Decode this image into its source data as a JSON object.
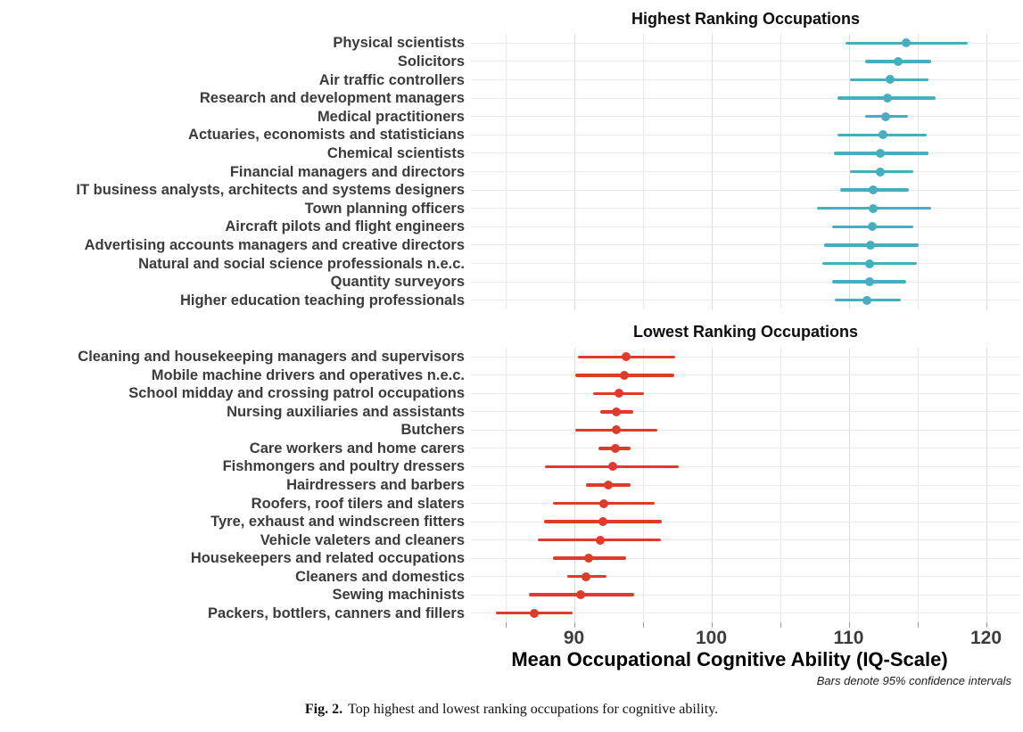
{
  "figure": {
    "caption_label": "Fig. 2.",
    "caption_text": "Top highest and lowest ranking occupations for cognitive ability."
  },
  "chart_data": {
    "type": "scatter",
    "variant": "horizontal-dot-plot-with-95ci-error-bars",
    "xlabel": "Mean Occupational Cognitive Ability (IQ-Scale)",
    "note": "Bars denote 95% confidence intervals",
    "xlim": [
      82.5,
      122.5
    ],
    "x_ticks_labeled": [
      90,
      100,
      110,
      120
    ],
    "x_ticks_minor": [
      85,
      95,
      105,
      115
    ],
    "grid": true,
    "legend_position": "none",
    "panels": [
      {
        "title": "Highest Ranking Occupations",
        "color": "#46AEBE",
        "rows": [
          {
            "label": "Physical scientists",
            "mean": 114.2,
            "lo": 109.8,
            "hi": 118.7
          },
          {
            "label": "Solicitors",
            "mean": 113.6,
            "lo": 111.2,
            "hi": 116.0
          },
          {
            "label": "Air traffic controllers",
            "mean": 113.0,
            "lo": 110.1,
            "hi": 115.8
          },
          {
            "label": "Research and development managers",
            "mean": 112.8,
            "lo": 109.2,
            "hi": 116.3
          },
          {
            "label": "Medical practitioners",
            "mean": 112.7,
            "lo": 111.2,
            "hi": 114.3
          },
          {
            "label": "Actuaries, economists and statisticians",
            "mean": 112.5,
            "lo": 109.2,
            "hi": 115.7
          },
          {
            "label": "Chemical scientists",
            "mean": 112.3,
            "lo": 108.9,
            "hi": 115.8
          },
          {
            "label": "Financial managers and directors",
            "mean": 112.3,
            "lo": 110.1,
            "hi": 114.7
          },
          {
            "label": "IT business analysts, architects and systems designers",
            "mean": 111.8,
            "lo": 109.4,
            "hi": 114.4
          },
          {
            "label": "Town planning officers",
            "mean": 111.8,
            "lo": 107.7,
            "hi": 116.0
          },
          {
            "label": "Aircraft pilots and flight engineers",
            "mean": 111.7,
            "lo": 108.8,
            "hi": 114.7
          },
          {
            "label": "Advertising accounts managers and creative directors",
            "mean": 111.6,
            "lo": 108.2,
            "hi": 115.1
          },
          {
            "label": "Natural and social science professionals n.e.c.",
            "mean": 111.5,
            "lo": 108.1,
            "hi": 115.0
          },
          {
            "label": "Quantity surveyors",
            "mean": 111.5,
            "lo": 108.8,
            "hi": 114.2
          },
          {
            "label": "Higher education teaching professionals",
            "mean": 111.3,
            "lo": 109.0,
            "hi": 113.8
          }
        ]
      },
      {
        "title": "Lowest Ranking Occupations",
        "color": "#E03A2B",
        "rows": [
          {
            "label": "Cleaning and housekeeping managers and supervisors",
            "mean": 93.8,
            "lo": 90.3,
            "hi": 97.4
          },
          {
            "label": "Mobile machine drivers and operatives n.e.c.",
            "mean": 93.7,
            "lo": 90.1,
            "hi": 97.3
          },
          {
            "label": "School midday and crossing patrol occupations",
            "mean": 93.3,
            "lo": 91.4,
            "hi": 95.1
          },
          {
            "label": "Nursing auxiliaries and assistants",
            "mean": 93.1,
            "lo": 91.9,
            "hi": 94.3
          },
          {
            "label": "Butchers",
            "mean": 93.1,
            "lo": 90.1,
            "hi": 96.1
          },
          {
            "label": "Care workers and home carers",
            "mean": 93.0,
            "lo": 91.8,
            "hi": 94.1
          },
          {
            "label": "Fishmongers and poultry dressers",
            "mean": 92.8,
            "lo": 87.9,
            "hi": 97.6
          },
          {
            "label": "Hairdressers and barbers",
            "mean": 92.5,
            "lo": 90.9,
            "hi": 94.1
          },
          {
            "label": "Roofers, roof tilers and slaters",
            "mean": 92.2,
            "lo": 88.5,
            "hi": 95.9
          },
          {
            "label": "Tyre, exhaust and windscreen fitters",
            "mean": 92.1,
            "lo": 87.8,
            "hi": 96.4
          },
          {
            "label": "Vehicle valeters and cleaners",
            "mean": 91.9,
            "lo": 87.4,
            "hi": 96.3
          },
          {
            "label": "Housekeepers and related occupations",
            "mean": 91.1,
            "lo": 88.5,
            "hi": 93.8
          },
          {
            "label": "Cleaners and domestics",
            "mean": 90.9,
            "lo": 89.5,
            "hi": 92.4
          },
          {
            "label": "Sewing machinists",
            "mean": 90.5,
            "lo": 86.7,
            "hi": 94.4
          },
          {
            "label": "Packers, bottlers, canners and fillers",
            "mean": 87.1,
            "lo": 84.3,
            "hi": 89.9
          }
        ]
      }
    ]
  }
}
